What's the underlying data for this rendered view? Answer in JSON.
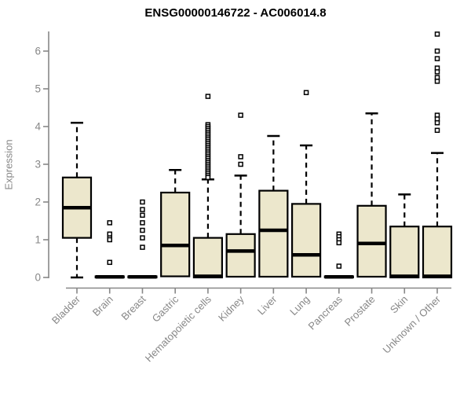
{
  "chart_data": {
    "type": "boxplot",
    "title": "ENSG00000146722 - AC006014.8",
    "ylabel": "Expression",
    "xlabel": "",
    "ylim": [
      0,
      6.6
    ],
    "yticks": [
      0,
      1,
      2,
      3,
      4,
      5,
      6
    ],
    "grid": false,
    "legend": "none",
    "colors": {
      "box_fill": "#ECE7CC",
      "box_stroke": "#000000",
      "median": "#000000",
      "axis": "#878787",
      "tick_label": "#878787",
      "title": "#000000"
    },
    "categories": [
      "Bladder",
      "Brain",
      "Breast",
      "Gastric",
      "Hematopoietic cells",
      "Kidney",
      "Liver",
      "Lung",
      "Pancreas",
      "Prostate",
      "Skin",
      "Unknown / Other"
    ],
    "boxes": [
      {
        "category": "Bladder",
        "whisker_low": 0,
        "q1": 1.05,
        "median": 1.85,
        "q3": 2.65,
        "whisker_high": 4.1,
        "outliers": []
      },
      {
        "category": "Brain",
        "whisker_low": 0,
        "q1": 0,
        "median": 0.015,
        "q3": 0.03,
        "whisker_high": 0.03,
        "outliers": [
          1.45,
          1.15,
          1.05,
          1.0,
          0.4
        ]
      },
      {
        "category": "Breast",
        "whisker_low": 0,
        "q1": 0,
        "median": 0.015,
        "q3": 0.03,
        "whisker_high": 0.03,
        "outliers": [
          2.0,
          1.8,
          1.65,
          1.45,
          1.25,
          1.05,
          0.8
        ]
      },
      {
        "category": "Gastric",
        "whisker_low": 0,
        "q1": 0.03,
        "median": 0.85,
        "q3": 2.25,
        "whisker_high": 2.85,
        "outliers": []
      },
      {
        "category": "Hematopoietic cells",
        "whisker_low": 0,
        "q1": 0,
        "median": 0.03,
        "q3": 1.05,
        "whisker_high": 2.6,
        "outliers": [
          4.8,
          4.05,
          4.0,
          3.95,
          3.9,
          3.85,
          3.8,
          3.75,
          3.7,
          3.65,
          3.6,
          3.55,
          3.5,
          3.45,
          3.4,
          3.35,
          3.3,
          3.25,
          3.2,
          3.15,
          3.1,
          3.05,
          3.0,
          2.95,
          2.9,
          2.85,
          2.8,
          2.75,
          2.7,
          2.65
        ]
      },
      {
        "category": "Kidney",
        "whisker_low": 0,
        "q1": 0.02,
        "median": 0.7,
        "q3": 1.15,
        "whisker_high": 2.7,
        "outliers": [
          4.3,
          3.2,
          3.0
        ]
      },
      {
        "category": "Liver",
        "whisker_low": 0,
        "q1": 0.02,
        "median": 1.25,
        "q3": 2.3,
        "whisker_high": 3.75,
        "outliers": []
      },
      {
        "category": "Lung",
        "whisker_low": 0,
        "q1": 0.02,
        "median": 0.6,
        "q3": 1.95,
        "whisker_high": 3.5,
        "outliers": [
          4.9
        ]
      },
      {
        "category": "Pancreas",
        "whisker_low": 0,
        "q1": 0,
        "median": 0.015,
        "q3": 0.03,
        "whisker_high": 0.03,
        "outliers": [
          1.15,
          1.08,
          1.0,
          0.92,
          0.3
        ]
      },
      {
        "category": "Prostate",
        "whisker_low": 0,
        "q1": 0.02,
        "median": 0.9,
        "q3": 1.9,
        "whisker_high": 4.35,
        "outliers": []
      },
      {
        "category": "Skin",
        "whisker_low": 0,
        "q1": 0,
        "median": 0.03,
        "q3": 1.35,
        "whisker_high": 2.2,
        "outliers": []
      },
      {
        "category": "Unknown / Other",
        "whisker_low": 0,
        "q1": 0,
        "median": 0.03,
        "q3": 1.35,
        "whisker_high": 3.3,
        "outliers": [
          6.45,
          6.0,
          5.8,
          5.55,
          5.45,
          5.3,
          5.2,
          4.3,
          4.2,
          4.1,
          3.9
        ]
      }
    ]
  }
}
